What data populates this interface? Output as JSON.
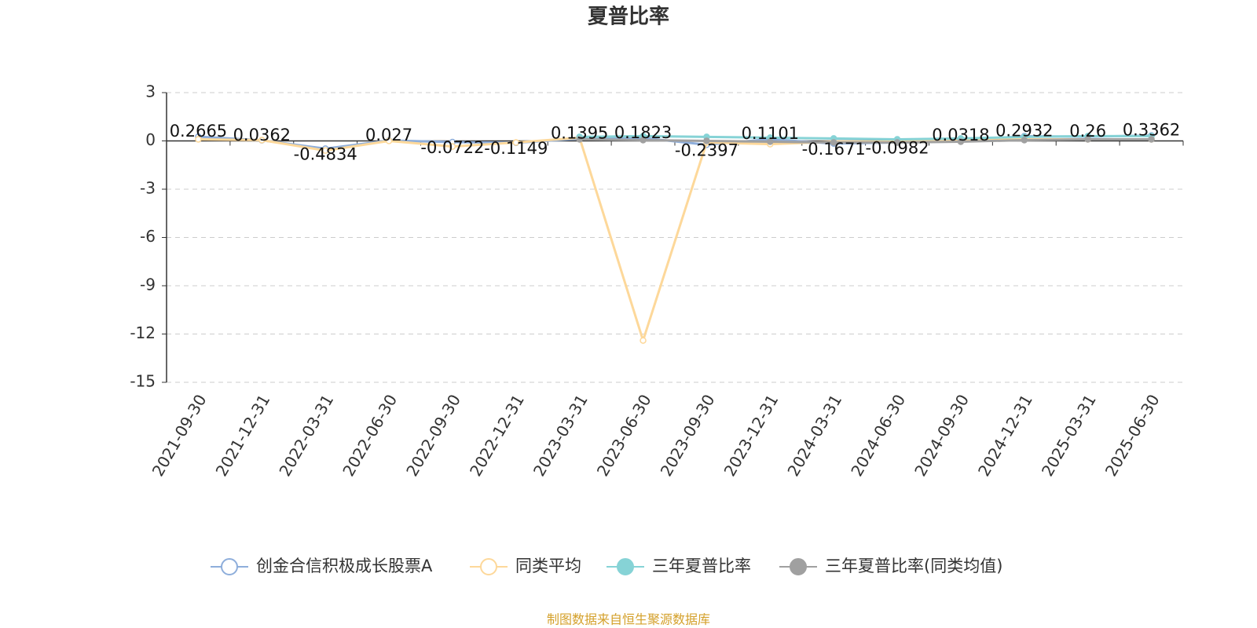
{
  "chart_data": {
    "type": "line",
    "title": "夏普比率",
    "categories": [
      "2021-09-30",
      "2021-12-31",
      "2022-03-31",
      "2022-06-30",
      "2022-09-30",
      "2022-12-31",
      "2023-03-31",
      "2023-06-30",
      "2023-09-30",
      "2023-12-31",
      "2024-03-31",
      "2024-06-30",
      "2024-09-30",
      "2024-12-31",
      "2025-03-31",
      "2025-06-30"
    ],
    "series": [
      {
        "name": "创金合信积极成长股票A",
        "color": "#8eaedb",
        "values": [
          0.2665,
          0.0362,
          -0.4834,
          0.027,
          -0.0722,
          -0.1149,
          0.1395,
          0.1823,
          -0.2397,
          0.1101,
          -0.1671,
          -0.0982,
          0.0318,
          0.2932,
          0.26,
          0.3362
        ]
      },
      {
        "name": "同类平均",
        "color": "#fdd89a",
        "values": [
          0.1,
          0.05,
          -0.6,
          0.0,
          -0.35,
          -0.1,
          0.2,
          -12.4,
          -0.1,
          -0.2,
          -0.05,
          -0.05,
          0.05,
          0.1,
          0.1,
          0.1
        ]
      },
      {
        "name": "三年夏普比率",
        "color": "#86d3d6",
        "values": [
          null,
          null,
          null,
          null,
          null,
          null,
          0.25,
          0.3,
          0.25,
          0.2,
          0.15,
          0.1,
          0.15,
          0.25,
          0.3,
          0.3
        ]
      },
      {
        "name": "三年夏普比率(同类均值)",
        "color": "#a0a0a0",
        "values": [
          null,
          null,
          null,
          null,
          null,
          null,
          0.1,
          0.05,
          0.0,
          -0.05,
          -0.1,
          -0.1,
          -0.05,
          0.05,
          0.1,
          0.1
        ]
      }
    ],
    "ylim": [
      -15,
      3
    ],
    "yticks": [
      -15,
      -12,
      -9,
      -6,
      -3,
      0,
      3
    ],
    "grid": true,
    "source": "制图数据来自恒生聚源数据库"
  }
}
